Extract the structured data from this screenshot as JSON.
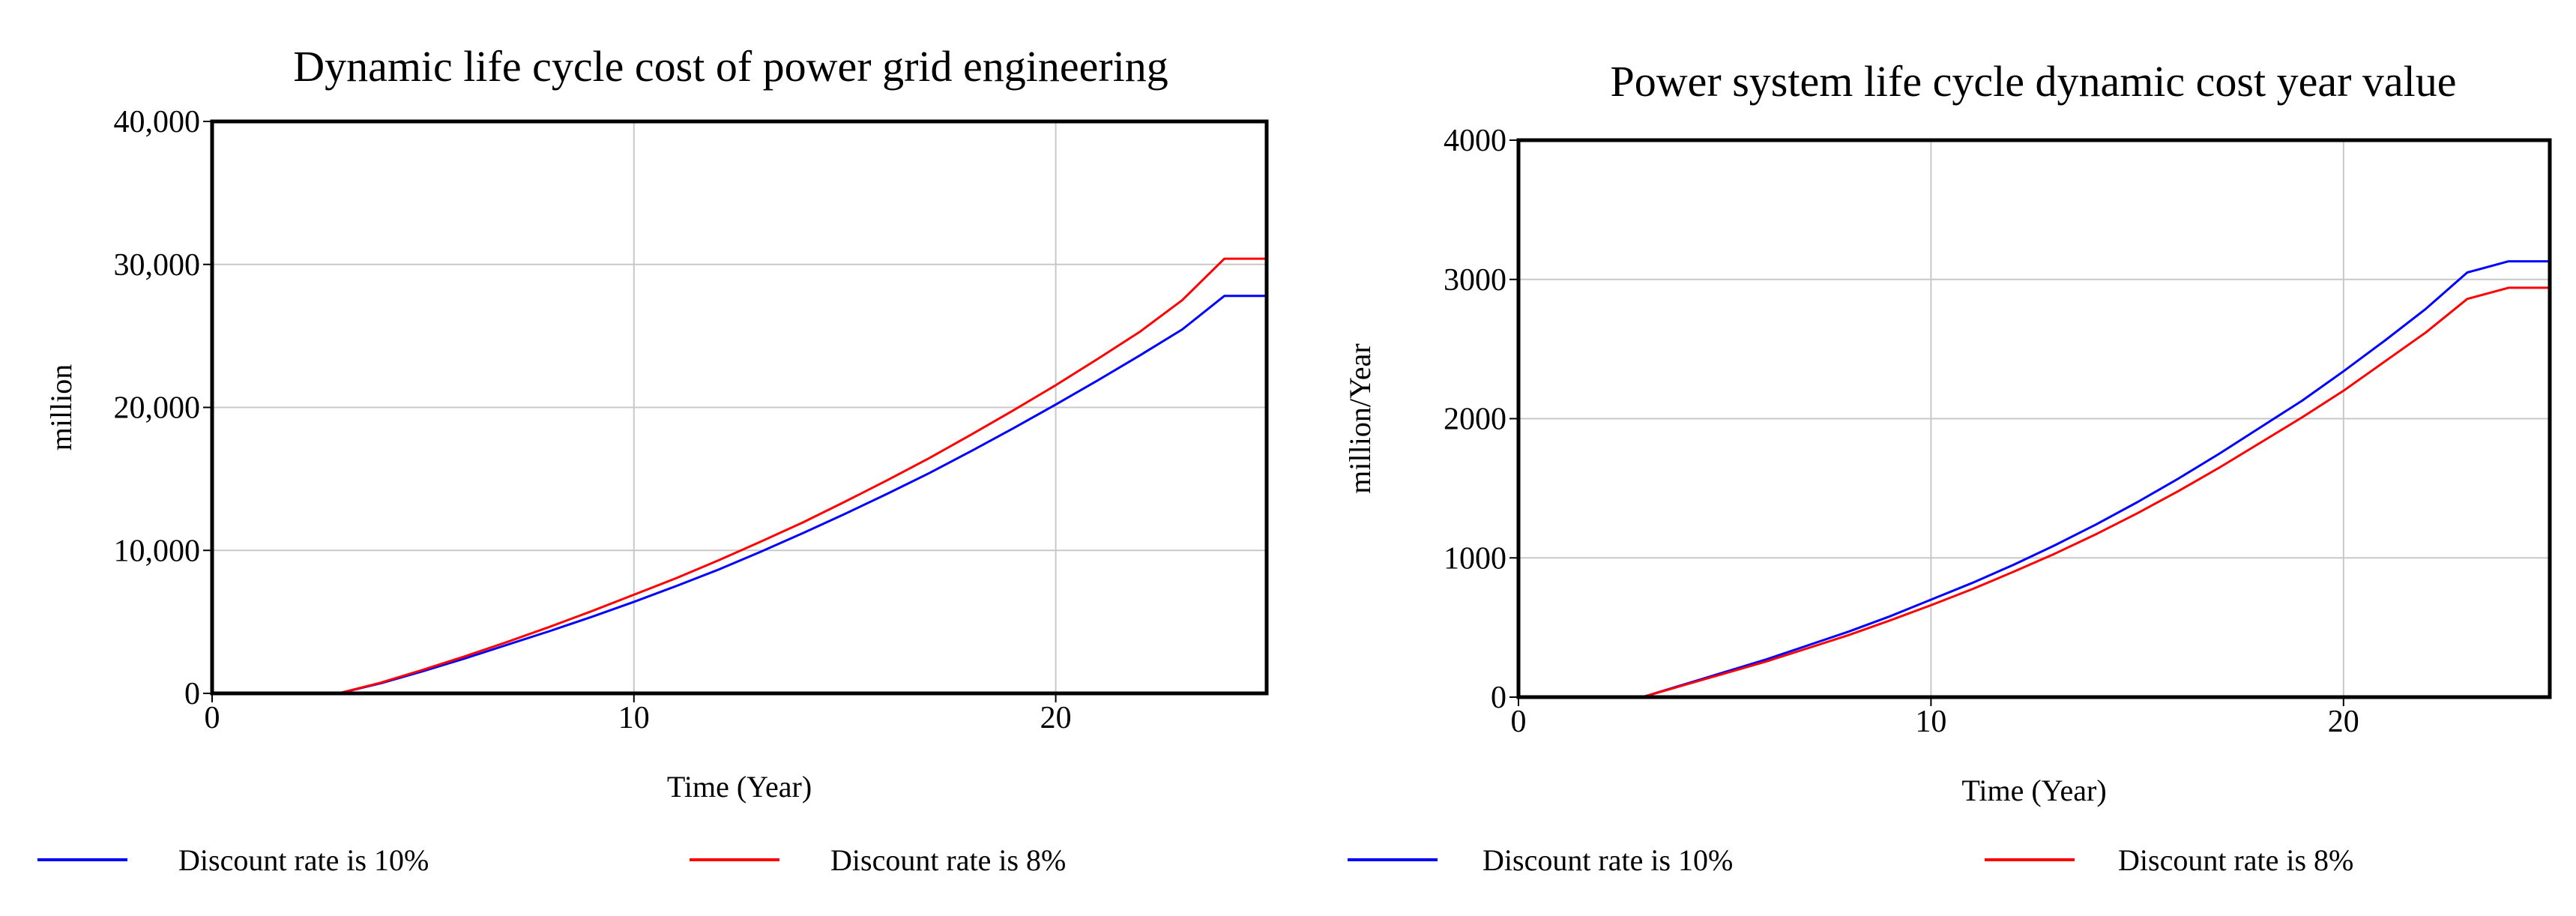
{
  "chart_data": [
    {
      "type": "line",
      "title": "Dynamic life cycle cost of power grid engineering",
      "xlabel": "Time (Year)",
      "ylabel": "million",
      "xlim": [
        0,
        25
      ],
      "ylim": [
        0,
        40000
      ],
      "x_ticks": [
        0,
        10,
        20
      ],
      "x_tick_labels": [
        "0",
        "10",
        "20"
      ],
      "y_ticks": [
        0,
        10000,
        20000,
        30000,
        40000
      ],
      "y_tick_labels": [
        "0",
        "10,000",
        "20,000",
        "30,000",
        "40,000"
      ],
      "grid": true,
      "legend_position": "bottom",
      "x": [
        0,
        2,
        3,
        4,
        5,
        6,
        7,
        8,
        9,
        10,
        11,
        12,
        13,
        14,
        15,
        16,
        17,
        18,
        19,
        20,
        21,
        22,
        23,
        24,
        25
      ],
      "series": [
        {
          "name": "Discount rate is 10%",
          "color": "#0000ff",
          "values": [
            0,
            0,
            0,
            700,
            1550,
            2450,
            3400,
            4350,
            5350,
            6400,
            7500,
            8650,
            9900,
            11200,
            12550,
            13950,
            15400,
            16950,
            18550,
            20200,
            21900,
            23650,
            25450,
            27800,
            27800
          ]
        },
        {
          "name": "Discount rate is 8%",
          "color": "#ff0000",
          "values": [
            0,
            0,
            0,
            750,
            1650,
            2600,
            3600,
            4650,
            5750,
            6900,
            8050,
            9300,
            10600,
            11950,
            13400,
            14900,
            16450,
            18100,
            19800,
            21550,
            23400,
            25300,
            27500,
            30400,
            30400
          ]
        }
      ]
    },
    {
      "type": "line",
      "title": "Power system life cycle dynamic cost year value",
      "xlabel": "Time (Year)",
      "ylabel": "million/Year",
      "xlim": [
        0,
        25
      ],
      "ylim": [
        0,
        4000
      ],
      "x_ticks": [
        0,
        10,
        20
      ],
      "x_tick_labels": [
        "0",
        "10",
        "20"
      ],
      "y_ticks": [
        0,
        1000,
        2000,
        3000,
        4000
      ],
      "y_tick_labels": [
        "0",
        "1000",
        "2000",
        "3000",
        "4000"
      ],
      "grid": true,
      "legend_position": "bottom",
      "x": [
        0,
        2,
        3,
        4,
        5,
        6,
        7,
        8,
        9,
        10,
        11,
        12,
        13,
        14,
        15,
        16,
        17,
        18,
        19,
        20,
        21,
        22,
        23,
        24,
        25
      ],
      "series": [
        {
          "name": "Discount rate is 10%",
          "color": "#0000ff",
          "values": [
            0,
            0,
            0,
            90,
            180,
            270,
            370,
            470,
            580,
            700,
            820,
            950,
            1090,
            1240,
            1400,
            1570,
            1750,
            1940,
            2130,
            2340,
            2560,
            2790,
            3050,
            3130,
            3130
          ]
        },
        {
          "name": "Discount rate is 8%",
          "color": "#ff0000",
          "values": [
            0,
            0,
            0,
            85,
            170,
            255,
            350,
            445,
            550,
            660,
            775,
            900,
            1030,
            1170,
            1320,
            1480,
            1650,
            1830,
            2010,
            2200,
            2410,
            2620,
            2860,
            2940,
            2940
          ]
        }
      ]
    }
  ]
}
